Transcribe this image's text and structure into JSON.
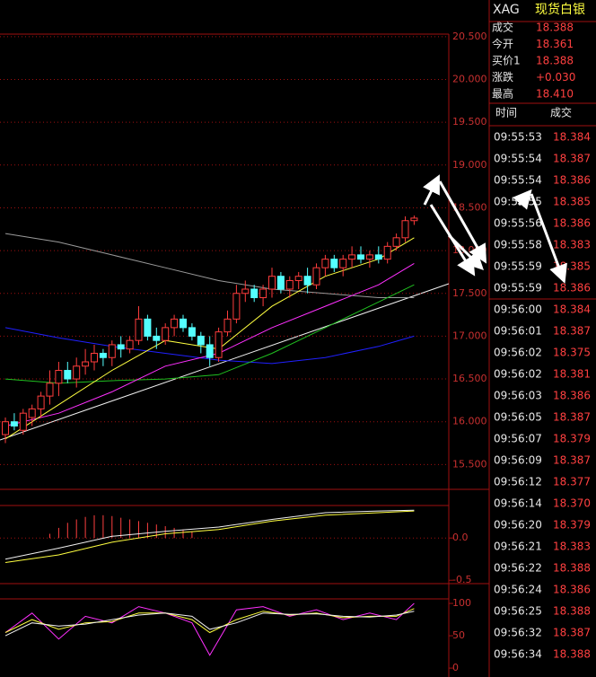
{
  "chart_data": [
    {
      "type": "candlestick",
      "ylim": [
        15.21,
        20.53
      ],
      "yticks": [
        {
          "value": 15.5,
          "label": "15.500"
        },
        {
          "value": 16,
          "label": "16.000"
        },
        {
          "value": 16.5,
          "label": "16.500"
        },
        {
          "value": 17,
          "label": "17.000"
        },
        {
          "value": 17.5,
          "label": "17.500"
        },
        {
          "value": 18,
          "label": "18.000"
        },
        {
          "value": 18.5,
          "label": "18.500"
        },
        {
          "value": 19,
          "label": "19.000"
        },
        {
          "value": 19.5,
          "label": "19.500"
        },
        {
          "value": 20,
          "label": "20.000"
        },
        {
          "value": 20.5,
          "label": "20.500"
        }
      ],
      "grid": true,
      "up_color": "#ff3c3c",
      "down_color": "#54ffff",
      "open": [
        15.85,
        16.0,
        15.9,
        16.05,
        16.15,
        16.3,
        16.45,
        16.6,
        16.5,
        16.65,
        16.7,
        16.8,
        16.75,
        16.9,
        16.85,
        16.95,
        17.2,
        17.0,
        16.95,
        17.1,
        17.2,
        17.1,
        17.0,
        16.9,
        16.75,
        17.05,
        17.2,
        17.5,
        17.55,
        17.45,
        17.55,
        17.7,
        17.55,
        17.65,
        17.7,
        17.6,
        17.8,
        17.9,
        17.8,
        17.9,
        17.95,
        17.9,
        17.95,
        17.9,
        18.05,
        18.15,
        18.35
      ],
      "high": [
        16.05,
        16.1,
        16.15,
        16.2,
        16.35,
        16.6,
        16.7,
        16.7,
        16.75,
        16.85,
        16.9,
        16.85,
        16.95,
        17.0,
        17.0,
        17.35,
        17.25,
        17.1,
        17.15,
        17.25,
        17.25,
        17.15,
        17.05,
        17.0,
        17.1,
        17.3,
        17.6,
        17.65,
        17.6,
        17.6,
        17.8,
        17.75,
        17.7,
        17.75,
        17.8,
        17.85,
        17.95,
        17.95,
        17.95,
        18.05,
        18.05,
        18.0,
        18.05,
        18.1,
        18.2,
        18.4,
        18.41
      ],
      "low": [
        15.75,
        15.9,
        15.85,
        15.95,
        16.05,
        16.2,
        16.3,
        16.45,
        16.4,
        16.55,
        16.6,
        16.65,
        16.65,
        16.75,
        16.8,
        16.9,
        16.95,
        16.85,
        16.9,
        17.0,
        17.05,
        16.95,
        16.8,
        16.65,
        16.7,
        17.0,
        17.15,
        17.4,
        17.4,
        17.35,
        17.45,
        17.5,
        17.45,
        17.55,
        17.5,
        17.55,
        17.7,
        17.75,
        17.7,
        17.8,
        17.85,
        17.8,
        17.85,
        17.85,
        18.0,
        18.1,
        18.3
      ],
      "close": [
        16.0,
        15.95,
        16.1,
        16.15,
        16.3,
        16.45,
        16.6,
        16.5,
        16.65,
        16.7,
        16.8,
        16.75,
        16.9,
        16.85,
        16.95,
        17.2,
        17.0,
        16.95,
        17.1,
        17.2,
        17.1,
        17.0,
        16.9,
        16.75,
        17.05,
        17.2,
        17.5,
        17.55,
        17.45,
        17.55,
        17.7,
        17.55,
        17.65,
        17.7,
        17.6,
        17.8,
        17.9,
        17.8,
        17.9,
        17.95,
        17.9,
        17.95,
        17.9,
        18.05,
        18.15,
        18.35,
        18.38
      ],
      "lines": [
        {
          "color": "#9a9a9a",
          "x": [
            0,
            6,
            12,
            18,
            24,
            30,
            36,
            42,
            46
          ],
          "values": [
            18.2,
            18.1,
            17.95,
            17.8,
            17.65,
            17.55,
            17.5,
            17.45,
            17.45
          ]
        },
        {
          "color": "#2020ff",
          "x": [
            0,
            6,
            12,
            18,
            24,
            30,
            36,
            42,
            46
          ],
          "values": [
            17.1,
            16.98,
            16.88,
            16.8,
            16.72,
            16.68,
            16.75,
            16.88,
            17.0
          ]
        },
        {
          "color": "#20c020",
          "x": [
            0,
            6,
            12,
            18,
            24,
            30,
            36,
            42,
            46
          ],
          "values": [
            16.5,
            16.45,
            16.48,
            16.5,
            16.55,
            16.8,
            17.1,
            17.4,
            17.6
          ]
        },
        {
          "color": "#ff30ff",
          "x": [
            0,
            6,
            12,
            18,
            24,
            30,
            36,
            42,
            46
          ],
          "values": [
            15.95,
            16.1,
            16.35,
            16.65,
            16.8,
            17.1,
            17.35,
            17.6,
            17.85
          ]
        },
        {
          "color": "#ffff40",
          "x": [
            0,
            6,
            12,
            18,
            24,
            30,
            36,
            42,
            46
          ],
          "values": [
            15.8,
            16.2,
            16.6,
            16.95,
            16.85,
            17.35,
            17.7,
            17.9,
            18.15
          ]
        }
      ]
    },
    {
      "type": "macd",
      "ylim": [
        -0.54,
        0.385
      ],
      "yticks": [
        {
          "value": 0,
          "label": "0.0"
        },
        {
          "value": -0.5,
          "label": "-0.5"
        }
      ],
      "histogram": {
        "color": "#ff4040",
        "x": [
          5,
          6,
          7,
          8,
          9,
          10,
          11,
          12,
          13,
          14,
          15,
          16,
          17,
          18,
          19,
          20,
          21
        ],
        "values": [
          0.05,
          0.12,
          0.18,
          0.22,
          0.25,
          0.27,
          0.27,
          0.26,
          0.24,
          0.22,
          0.2,
          0.18,
          0.16,
          0.14,
          0.12,
          0.1,
          0.08
        ]
      },
      "series": [
        {
          "color": "#ffff40",
          "x": [
            0,
            6,
            12,
            18,
            24,
            30,
            36,
            42,
            46
          ],
          "values": [
            -0.29,
            -0.2,
            -0.05,
            0.05,
            0.1,
            0.2,
            0.27,
            0.3,
            0.32
          ]
        },
        {
          "color": "#f0f0f0",
          "x": [
            0,
            6,
            12,
            18,
            24,
            30,
            36,
            42,
            46
          ],
          "values": [
            -0.25,
            -0.12,
            0.02,
            0.08,
            0.13,
            0.22,
            0.3,
            0.32,
            0.33
          ]
        }
      ]
    },
    {
      "type": "kdj",
      "ylim": [
        -11,
        107
      ],
      "yticks": [
        0,
        50,
        100
      ],
      "series": [
        {
          "color": "#ff30ff",
          "x": [
            0,
            3,
            6,
            9,
            12,
            15,
            18,
            21,
            23,
            26,
            29,
            32,
            35,
            38,
            41,
            44,
            46
          ],
          "values": [
            55,
            85,
            45,
            80,
            70,
            95,
            85,
            70,
            20,
            90,
            95,
            80,
            90,
            75,
            85,
            75,
            100
          ]
        },
        {
          "color": "#ffff40",
          "x": [
            0,
            3,
            6,
            9,
            12,
            15,
            18,
            21,
            23,
            26,
            29,
            32,
            35,
            38,
            41,
            44,
            46
          ],
          "values": [
            55,
            75,
            60,
            70,
            72,
            85,
            85,
            75,
            55,
            75,
            88,
            82,
            85,
            78,
            80,
            80,
            92
          ]
        },
        {
          "color": "#f0f0f0",
          "x": [
            0,
            3,
            6,
            9,
            12,
            15,
            18,
            21,
            23,
            26,
            29,
            32,
            35,
            38,
            41,
            44,
            46
          ],
          "values": [
            50,
            70,
            65,
            68,
            75,
            82,
            85,
            80,
            60,
            70,
            85,
            83,
            84,
            80,
            79,
            82,
            88
          ]
        }
      ]
    }
  ],
  "quote": {
    "symbol": "XAG",
    "name": "现货白银",
    "fields": [
      [
        "成交",
        "18.388"
      ],
      [
        "今开",
        "18.361"
      ],
      [
        "买价1",
        "18.388"
      ],
      [
        "涨跌",
        "+0.030"
      ],
      [
        "最高",
        "18.410"
      ]
    ]
  },
  "ticks_table": {
    "headers": [
      "时间",
      "成交"
    ],
    "rows": [
      [
        "09:55:53",
        "18.384"
      ],
      [
        "09:55:54",
        "18.387"
      ],
      [
        "09:55:54",
        "18.386"
      ],
      [
        "09:55:55",
        "18.385"
      ],
      [
        "09:55:56",
        "18.386"
      ],
      [
        "09:55:58",
        "18.383"
      ],
      [
        "09:55:59",
        "18.385"
      ],
      [
        "09:55:59",
        "18.386"
      ],
      [
        "09:56:00",
        "18.384"
      ],
      [
        "09:56:01",
        "18.387"
      ],
      [
        "09:56:02",
        "18.375"
      ],
      [
        "09:56:02",
        "18.381"
      ],
      [
        "09:56:03",
        "18.386"
      ],
      [
        "09:56:05",
        "18.387"
      ],
      [
        "09:56:07",
        "18.379"
      ],
      [
        "09:56:09",
        "18.387"
      ],
      [
        "09:56:12",
        "18.377"
      ],
      [
        "09:56:14",
        "18.370"
      ],
      [
        "09:56:20",
        "18.379"
      ],
      [
        "09:56:21",
        "18.383"
      ],
      [
        "09:56:22",
        "18.388"
      ],
      [
        "09:56:24",
        "18.386"
      ],
      [
        "09:56:25",
        "18.388"
      ],
      [
        "09:56:32",
        "18.387"
      ],
      [
        "09:56:34",
        "18.388"
      ]
    ]
  }
}
